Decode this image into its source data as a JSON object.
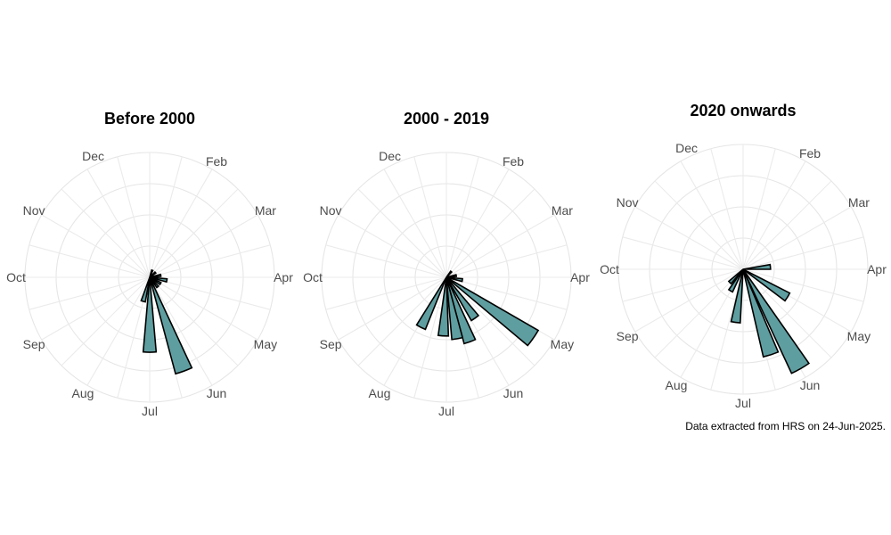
{
  "colors": {
    "bar_fill": "#5f9ea0",
    "bar_stroke": "#000000",
    "grid": "#e6e6e6"
  },
  "caption": "Data extracted from HRS on 24-Jun-2025.",
  "chart_data": [
    {
      "type": "bar",
      "subtype": "polar rose / windrose",
      "title": "Before 2000",
      "months": [
        "Dec",
        "Feb",
        "Mar",
        "Apr",
        "May",
        "Jun",
        "Jul",
        "Aug",
        "Sep",
        "Oct",
        "Nov"
      ],
      "grid": true,
      "series": [
        {
          "values": [
            {
              "deg": 80,
              "r": 0.09
            },
            {
              "deg": 100,
              "r": 0.14
            },
            {
              "deg": 120,
              "r": 0.1
            },
            {
              "deg": 140,
              "r": 0.1
            },
            {
              "deg": 160,
              "r": 0.8
            },
            {
              "deg": 180,
              "r": 0.6
            },
            {
              "deg": 195,
              "r": 0.2
            },
            {
              "deg": 20,
              "r": 0.06
            },
            {
              "deg": 50,
              "r": 0.06
            }
          ]
        }
      ]
    },
    {
      "type": "bar",
      "subtype": "polar rose / windrose",
      "title": "2000 - 2019",
      "months": [
        "Dec",
        "Feb",
        "Mar",
        "Apr",
        "May",
        "Jun",
        "Jul",
        "Aug",
        "Sep",
        "Oct",
        "Nov"
      ],
      "grid": true,
      "series": [
        {
          "values": [
            {
              "deg": 125,
              "r": 0.85
            },
            {
              "deg": 145,
              "r": 0.4
            },
            {
              "deg": 160,
              "r": 0.55
            },
            {
              "deg": 170,
              "r": 0.5
            },
            {
              "deg": 183,
              "r": 0.47
            },
            {
              "deg": 207,
              "r": 0.45
            },
            {
              "deg": 100,
              "r": 0.13
            },
            {
              "deg": 80,
              "r": 0.08
            },
            {
              "deg": 40,
              "r": 0.06
            }
          ]
        }
      ]
    },
    {
      "type": "bar",
      "subtype": "polar rose / windrose",
      "title": "2020 onwards",
      "months": [
        "Dec",
        "Feb",
        "Mar",
        "Apr",
        "May",
        "Jun",
        "Jul",
        "Aug",
        "Sep",
        "Oct",
        "Nov"
      ],
      "grid": true,
      "series": [
        {
          "values": [
            {
              "deg": 85,
              "r": 0.22
            },
            {
              "deg": 122,
              "r": 0.42
            },
            {
              "deg": 150,
              "r": 0.92
            },
            {
              "deg": 162,
              "r": 0.72
            },
            {
              "deg": 188,
              "r": 0.43
            },
            {
              "deg": 210,
              "r": 0.2
            },
            {
              "deg": 225,
              "r": 0.15
            }
          ]
        }
      ]
    }
  ]
}
